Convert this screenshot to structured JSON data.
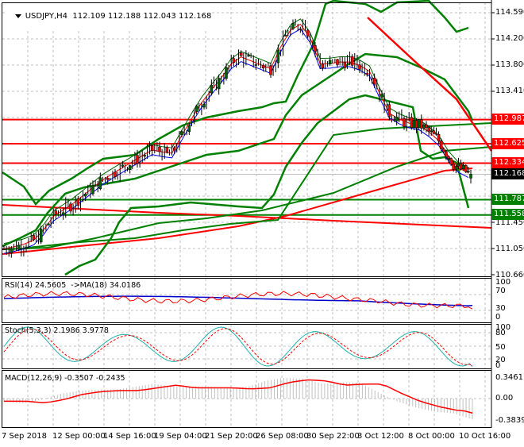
{
  "header": {
    "symbol": "USDJPY,H4",
    "ohlc": "112.109 112.188 112.043 112.168"
  },
  "colors": {
    "bull_candle": "#006400",
    "bear_candle": "#ff0000",
    "level_red": "#ff0000",
    "level_green": "#008000",
    "bollinger": "#008000",
    "ma_fast": "#006400",
    "ma_mid": "#ff0000",
    "ma_slow": "#0000ff",
    "rsi": "#ff0000",
    "rsi_ma": "#0000cc",
    "stoch_main": "#20b2aa",
    "stoch_signal": "#ff0000",
    "macd_hist": "#c0c0c0",
    "macd_signal": "#ff0000",
    "current_price_bg": "#000000",
    "grid": "#c0c0c0"
  },
  "price_axis": {
    "labels": [
      "114.590",
      "114.200",
      "113.800",
      "113.410",
      "111.450",
      "111.050",
      "110.660"
    ],
    "tags": [
      {
        "value": "112.987",
        "color": "red"
      },
      {
        "value": "112.625",
        "color": "red"
      },
      {
        "value": "112.334",
        "color": "red"
      },
      {
        "value": "112.168",
        "color": "black"
      },
      {
        "value": "111.787",
        "color": "green"
      },
      {
        "value": "111.558",
        "color": "green"
      }
    ]
  },
  "indicators": {
    "rsi": {
      "label": "RSI(14) 24.5605  ->MA(18) 34.0186",
      "axis": [
        "100",
        "70",
        "30",
        "0"
      ]
    },
    "stoch": {
      "label": "Stoch(5,3,3) 2.1986 3.9778",
      "axis": [
        "100",
        "80",
        "50",
        "20",
        "0"
      ]
    },
    "macd": {
      "label": "MACD(12,26,9) -0.3507 -0.2435",
      "axis": [
        "0.3461",
        "0.00",
        "-0.3839"
      ]
    }
  },
  "time_axis": {
    "labels": [
      "7 Sep 2018",
      "12 Sep 00:00",
      "14 Sep 16:00",
      "19 Sep 04:00",
      "21 Sep 20:00",
      "26 Sep 08:00",
      "30 Sep 22:00",
      "3 Oct 12:00",
      "8 Oct 00:00",
      "10 Oct 16:00"
    ]
  },
  "chart_data": {
    "type": "candlestick",
    "title": "USDJPY,H4",
    "ohlc_last": {
      "open": 112.109,
      "high": 112.188,
      "low": 112.043,
      "close": 112.168
    },
    "x": [
      "7 Sep 2018",
      "12 Sep 00:00",
      "14 Sep 16:00",
      "19 Sep 04:00",
      "21 Sep 20:00",
      "26 Sep 08:00",
      "30 Sep 22:00",
      "3 Oct 12:00",
      "8 Oct 00:00",
      "10 Oct 16:00"
    ],
    "ylim": [
      110.66,
      114.59
    ],
    "approx_close_path": [
      111.05,
      111.1,
      111.2,
      111.55,
      111.7,
      111.9,
      112.1,
      112.25,
      112.4,
      112.55,
      112.45,
      112.9,
      113.3,
      113.6,
      113.95,
      113.85,
      113.75,
      114.3,
      114.45,
      113.8,
      113.85,
      113.85,
      113.7,
      113.1,
      112.95,
      112.9,
      112.7,
      112.3,
      112.17
    ],
    "horizontal_levels": {
      "resistance": [
        112.987,
        112.625,
        112.334
      ],
      "support": [
        111.787,
        111.558
      ],
      "current": 112.168
    },
    "trendline_down": {
      "from": [
        "3 Oct 12:00",
        114.5
      ],
      "to": [
        "10 Oct 16:00",
        112.65
      ]
    },
    "overlays": [
      "Bollinger Bands",
      "Moving averages (fast/mid/slow)",
      "Long-period moving averages"
    ],
    "subcharts": [
      {
        "name": "RSI(14)",
        "value": 24.5605,
        "ma_label": "MA(18)",
        "ma_value": 34.0186,
        "ylim": [
          0,
          100
        ],
        "levels": [
          30,
          70
        ]
      },
      {
        "name": "Stoch(5,3,3)",
        "main": 2.1986,
        "signal": 3.9778,
        "ylim": [
          0,
          100
        ],
        "levels": [
          20,
          50,
          80
        ]
      },
      {
        "name": "MACD(12,26,9)",
        "main": -0.3507,
        "signal": -0.2435,
        "ylim": [
          -0.3839,
          0.3461
        ]
      }
    ],
    "grid": true
  }
}
